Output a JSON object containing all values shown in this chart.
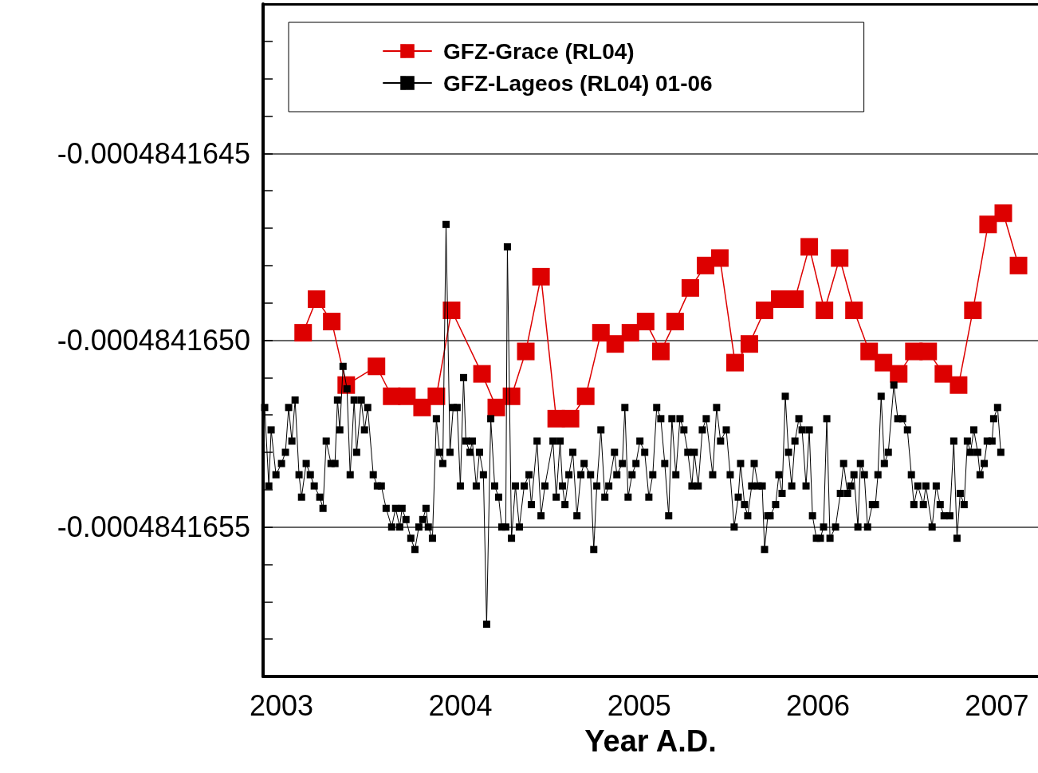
{
  "chart_data": {
    "type": "line",
    "xlabel": "Year A.D.",
    "xlim": [
      2002.897,
      2007.23
    ],
    "xticks": [
      2003,
      2004,
      2005,
      2006,
      2007
    ],
    "ylim": [
      -0.0004841659,
      -0.0004841641
    ],
    "yticks": [
      {
        "value": -0.0004841658,
        "label": null
      },
      {
        "value": -0.0004841657,
        "label": null
      },
      {
        "value": -0.0004841656,
        "label": null
      },
      -0.0004841655,
      {
        "value": -0.0004841654,
        "label": null
      },
      {
        "value": -0.0004841653,
        "label": null
      },
      {
        "value": -0.0004841652,
        "label": null
      },
      {
        "value": -0.0004841651,
        "label": null
      },
      {
        "value": -0.000484165,
        "label": "-0.0004841650"
      },
      {
        "value": -0.0004841649,
        "label": null
      },
      {
        "value": -0.0004841648,
        "label": null
      },
      {
        "value": -0.0004841647,
        "label": null
      },
      {
        "value": -0.0004841646,
        "label": null
      },
      -0.0004841645,
      {
        "value": -0.0004841644,
        "label": null
      },
      {
        "value": -0.0004841643,
        "label": null
      },
      {
        "value": -0.0004841642,
        "label": null
      }
    ],
    "grid": "y",
    "legend": "top left",
    "marker": "square",
    "line_style": "solid",
    "series": [
      {
        "name": "GFZ-Grace (RL04)",
        "color": "#dd0000",
        "x": [
          2003.121,
          2003.196,
          2003.281,
          2003.362,
          2003.531,
          2003.616,
          2003.701,
          2003.786,
          2003.866,
          2003.951,
          2004.121,
          2004.201,
          2004.286,
          2004.366,
          2004.451,
          2004.536,
          2004.616,
          2004.701,
          2004.786,
          2004.866,
          2004.951,
          2005.036,
          2005.121,
          2005.201,
          2005.286,
          2005.371,
          2005.451,
          2005.536,
          2005.616,
          2005.701,
          2005.786,
          2005.871,
          2005.951,
          2006.036,
          2006.121,
          2006.201,
          2006.286,
          2006.366,
          2006.451,
          2006.536,
          2006.616,
          2006.701,
          2006.786,
          2006.866,
          2006.951,
          2007.036,
          2007.121
        ],
        "values": [
          -0.00048416498,
          -0.00048416489,
          -0.00048416495,
          -0.00048416512,
          -0.00048416507,
          -0.00048416515,
          -0.00048416515,
          -0.00048416518,
          -0.00048416515,
          -0.00048416492,
          -0.00048416509,
          -0.00048416518,
          -0.00048416515,
          -0.00048416503,
          -0.00048416483,
          -0.00048416521,
          -0.00048416521,
          -0.00048416515,
          -0.00048416498,
          -0.00048416501,
          -0.00048416498,
          -0.00048416495,
          -0.00048416503,
          -0.00048416495,
          -0.00048416486,
          -0.0004841648,
          -0.00048416478,
          -0.00048416506,
          -0.00048416501,
          -0.00048416492,
          -0.00048416489,
          -0.00048416489,
          -0.00048416475,
          -0.00048416492,
          -0.00048416478,
          -0.00048416492,
          -0.00048416503,
          -0.00048416506,
          -0.00048416509,
          -0.00048416503,
          -0.00048416503,
          -0.00048416509,
          -0.00048416512,
          -0.00048416492,
          -0.00048416469,
          -0.00048416466,
          -0.0004841648
        ]
      },
      {
        "name": "GFZ-Lageos (RL04) 01-06",
        "color": "#000000",
        "x": [
          2002.906,
          2002.929,
          2002.942,
          2002.969,
          2003.0,
          2003.022,
          2003.04,
          2003.058,
          2003.076,
          2003.098,
          2003.112,
          2003.138,
          2003.161,
          2003.183,
          2003.214,
          2003.232,
          2003.25,
          2003.277,
          2003.299,
          2003.313,
          2003.326,
          2003.344,
          2003.366,
          2003.384,
          2003.406,
          2003.42,
          2003.446,
          2003.464,
          2003.482,
          2003.513,
          2003.536,
          2003.558,
          2003.585,
          2003.616,
          2003.638,
          2003.661,
          2003.674,
          2003.696,
          2003.723,
          2003.746,
          2003.768,
          2003.79,
          2003.808,
          2003.821,
          2003.844,
          2003.866,
          2003.884,
          2003.902,
          2003.92,
          2003.942,
          2003.96,
          2003.982,
          2004.0,
          2004.018,
          2004.031,
          2004.054,
          2004.067,
          2004.089,
          2004.107,
          2004.129,
          2004.147,
          2004.17,
          2004.192,
          2004.214,
          2004.232,
          2004.254,
          2004.263,
          2004.286,
          2004.308,
          2004.33,
          2004.357,
          2004.384,
          2004.397,
          2004.429,
          2004.451,
          2004.473,
          2004.518,
          2004.536,
          2004.558,
          2004.571,
          2004.585,
          2004.607,
          2004.629,
          2004.652,
          2004.674,
          2004.692,
          2004.728,
          2004.746,
          2004.763,
          2004.786,
          2004.808,
          2004.83,
          2004.862,
          2004.875,
          2004.906,
          2004.92,
          2004.938,
          2004.96,
          2004.982,
          2005.004,
          2005.031,
          2005.054,
          2005.076,
          2005.098,
          2005.121,
          2005.143,
          2005.165,
          2005.183,
          2005.205,
          2005.228,
          2005.25,
          2005.272,
          2005.295,
          2005.308,
          2005.33,
          2005.353,
          2005.375,
          2005.411,
          2005.433,
          2005.455,
          2005.487,
          2005.509,
          2005.531,
          2005.554,
          2005.567,
          2005.589,
          2005.607,
          2005.629,
          2005.643,
          2005.665,
          2005.688,
          2005.701,
          2005.719,
          2005.732,
          2005.763,
          2005.781,
          2005.799,
          2005.817,
          2005.835,
          2005.853,
          2005.871,
          2005.893,
          2005.911,
          2005.933,
          2005.951,
          2005.969,
          2005.991,
          2006.013,
          2006.031,
          2006.049,
          2006.067,
          2006.098,
          2006.125,
          2006.143,
          2006.165,
          2006.183,
          2006.201,
          2006.223,
          2006.237,
          2006.259,
          2006.277,
          2006.304,
          2006.321,
          2006.335,
          2006.353,
          2006.371,
          2006.393,
          2006.424,
          2006.446,
          2006.473,
          2006.5,
          2006.522,
          2006.536,
          2006.558,
          2006.589,
          2006.603,
          2006.638,
          2006.661,
          2006.683,
          2006.705,
          2006.737,
          2006.759,
          2006.777,
          2006.795,
          2006.817,
          2006.835,
          2006.853,
          2006.871,
          2006.893,
          2006.906,
          2006.929,
          2006.946,
          2006.973,
          2006.982,
          2007.004,
          2007.022
        ],
        "values": [
          -0.00048416518,
          -0.00048416539,
          -0.00048416524,
          -0.00048416536,
          -0.00048416533,
          -0.0004841653,
          -0.00048416518,
          -0.00048416527,
          -0.00048416516,
          -0.00048416536,
          -0.00048416542,
          -0.00048416533,
          -0.00048416536,
          -0.00048416539,
          -0.00048416542,
          -0.00048416545,
          -0.00048416527,
          -0.00048416533,
          -0.00048416533,
          -0.00048416516,
          -0.00048416524,
          -0.00048416507,
          -0.00048416513,
          -0.00048416536,
          -0.00048416516,
          -0.0004841653,
          -0.00048416516,
          -0.00048416524,
          -0.00048416518,
          -0.00048416536,
          -0.00048416539,
          -0.00048416539,
          -0.00048416545,
          -0.0004841655,
          -0.00048416545,
          -0.0004841655,
          -0.00048416545,
          -0.00048416548,
          -0.00048416553,
          -0.00048416556,
          -0.0004841655,
          -0.00048416548,
          -0.00048416545,
          -0.0004841655,
          -0.00048416553,
          -0.00048416521,
          -0.0004841653,
          -0.00048416533,
          -0.00048416469,
          -0.0004841653,
          -0.00048416518,
          -0.00048416518,
          -0.00048416539,
          -0.0004841651,
          -0.00048416527,
          -0.0004841653,
          -0.00048416527,
          -0.00048416539,
          -0.0004841653,
          -0.00048416536,
          -0.00048416576,
          -0.00048416521,
          -0.00048416539,
          -0.00048416542,
          -0.0004841655,
          -0.0004841655,
          -0.00048416475,
          -0.00048416553,
          -0.00048416539,
          -0.0004841655,
          -0.00048416539,
          -0.00048416536,
          -0.00048416544,
          -0.00048416527,
          -0.00048416547,
          -0.00048416539,
          -0.00048416527,
          -0.00048416542,
          -0.00048416527,
          -0.00048416539,
          -0.00048416544,
          -0.00048416536,
          -0.0004841653,
          -0.00048416547,
          -0.00048416536,
          -0.00048416533,
          -0.00048416536,
          -0.00048416556,
          -0.00048416539,
          -0.00048416524,
          -0.00048416542,
          -0.00048416539,
          -0.0004841653,
          -0.00048416536,
          -0.00048416533,
          -0.00048416518,
          -0.00048416542,
          -0.00048416536,
          -0.00048416533,
          -0.00048416527,
          -0.0004841653,
          -0.00048416542,
          -0.00048416536,
          -0.00048416518,
          -0.00048416521,
          -0.00048416533,
          -0.00048416547,
          -0.00048416521,
          -0.00048416536,
          -0.00048416521,
          -0.00048416524,
          -0.0004841653,
          -0.00048416539,
          -0.0004841653,
          -0.00048416539,
          -0.00048416524,
          -0.00048416521,
          -0.00048416536,
          -0.00048416518,
          -0.00048416527,
          -0.00048416524,
          -0.00048416536,
          -0.0004841655,
          -0.00048416542,
          -0.00048416533,
          -0.00048416544,
          -0.00048416547,
          -0.00048416539,
          -0.00048416533,
          -0.00048416539,
          -0.00048416539,
          -0.00048416556,
          -0.00048416547,
          -0.00048416547,
          -0.00048416544,
          -0.00048416536,
          -0.00048416541,
          -0.00048416515,
          -0.0004841653,
          -0.00048416539,
          -0.00048416527,
          -0.00048416521,
          -0.00048416524,
          -0.00048416539,
          -0.00048416524,
          -0.00048416547,
          -0.00048416553,
          -0.00048416553,
          -0.0004841655,
          -0.00048416521,
          -0.00048416553,
          -0.0004841655,
          -0.00048416541,
          -0.00048416533,
          -0.00048416541,
          -0.00048416539,
          -0.00048416536,
          -0.0004841655,
          -0.00048416533,
          -0.00048416536,
          -0.0004841655,
          -0.00048416544,
          -0.00048416544,
          -0.00048416536,
          -0.00048416515,
          -0.00048416533,
          -0.0004841653,
          -0.00048416512,
          -0.00048416521,
          -0.00048416521,
          -0.00048416524,
          -0.00048416536,
          -0.00048416544,
          -0.00048416539,
          -0.00048416544,
          -0.00048416539,
          -0.0004841655,
          -0.00048416539,
          -0.00048416544,
          -0.00048416547,
          -0.00048416547,
          -0.00048416527,
          -0.00048416553,
          -0.00048416541,
          -0.00048416544,
          -0.00048416527,
          -0.0004841653,
          -0.00048416524,
          -0.0004841653,
          -0.00048416536,
          -0.00048416533,
          -0.00048416527,
          -0.00048416527,
          -0.00048416521,
          -0.00048416518,
          -0.0004841653
        ]
      }
    ]
  }
}
